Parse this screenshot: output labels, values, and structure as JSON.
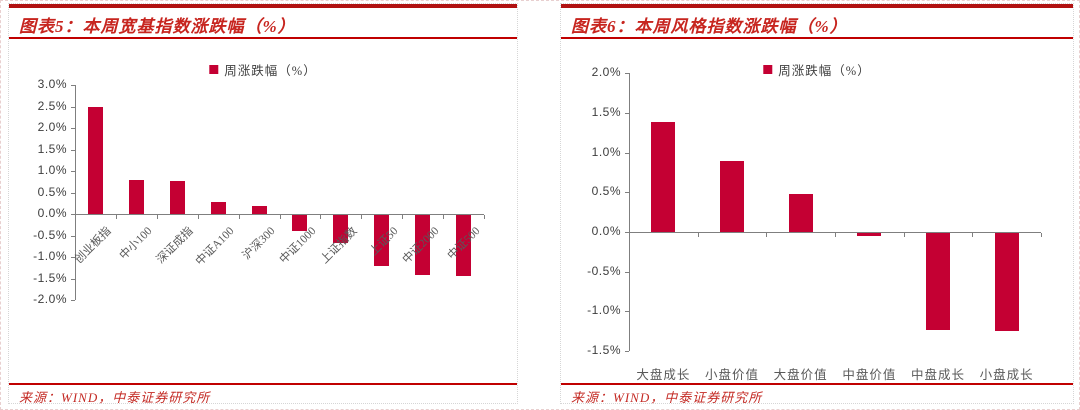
{
  "colors": {
    "bar_red": "#c40033",
    "title_red": "#c7251f",
    "rule_dark_red": "#b11212",
    "rule_red": "#c00000",
    "axis_gray": "#7f7f7f",
    "tick_text": "#3d3d3d",
    "xlabel_text": "#595959"
  },
  "chart_data": [
    {
      "type": "bar",
      "figure_title": "图表5：本周宽基指数涨跌幅（%）",
      "legend": "周涨跌幅（%）",
      "legend_position": "top-center",
      "source": "来源：WIND，中泰证券研究所",
      "categories": [
        "创业板指",
        "中小100",
        "深证成指",
        "中证A100",
        "沪深300",
        "中证1000",
        "上证指数",
        "上证50",
        "中证2000",
        "中证500"
      ],
      "values": [
        2.5,
        0.8,
        0.76,
        0.28,
        0.19,
        -0.38,
        -0.65,
        -1.18,
        -1.4,
        -1.43
      ],
      "ylim": [
        -2.0,
        3.0
      ],
      "ytick_step": 0.5,
      "yticks": [
        "3.0%",
        "2.5%",
        "2.0%",
        "1.5%",
        "1.0%",
        "0.5%",
        "0.0%",
        "-0.5%",
        "-1.0%",
        "-1.5%",
        "-2.0%"
      ],
      "xlabel": "",
      "ylabel": "",
      "grid": false,
      "bar_color": "#c40033",
      "xtick_rotation": -45
    },
    {
      "type": "bar",
      "figure_title": "图表6：本周风格指数涨跌幅（%）",
      "legend": "周涨跌幅（%）",
      "legend_position": "top-center",
      "source": "来源：WIND，中泰证券研究所",
      "categories": [
        "大盘成长",
        "小盘价值",
        "大盘价值",
        "中盘价值",
        "中盘成长",
        "小盘成长"
      ],
      "values": [
        1.39,
        0.9,
        0.48,
        -0.04,
        -1.22,
        -1.23
      ],
      "ylim": [
        -1.5,
        2.0
      ],
      "ytick_step": 0.5,
      "yticks": [
        "2.0%",
        "1.5%",
        "1.0%",
        "0.5%",
        "0.0%",
        "-0.5%",
        "-1.0%",
        "-1.5%"
      ],
      "xlabel": "",
      "ylabel": "",
      "grid": false,
      "bar_color": "#c40033",
      "xtick_rotation": 0
    }
  ]
}
